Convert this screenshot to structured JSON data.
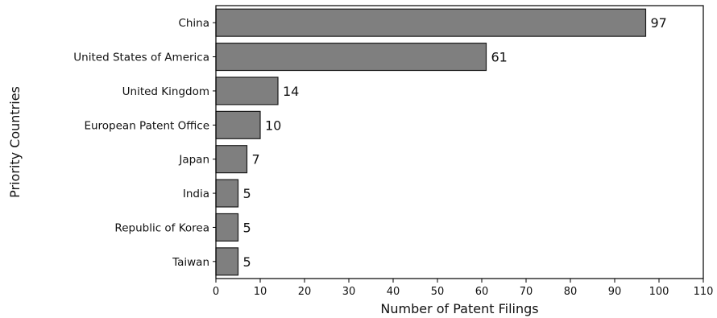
{
  "chart_data": {
    "type": "bar",
    "orientation": "horizontal",
    "categories": [
      "China",
      "United States of America",
      "United Kingdom",
      "European Patent Office",
      "Japan",
      "India",
      "Republic of Korea",
      "Taiwan"
    ],
    "values": [
      97,
      61,
      14,
      10,
      7,
      5,
      5,
      5
    ],
    "data_labels": [
      "97",
      "61",
      "14",
      "10",
      "7",
      "5",
      "5",
      "5"
    ],
    "xlabel": "Number of Patent Filings",
    "ylabel": "Priority Countries",
    "xlim": [
      0,
      110
    ],
    "xticks": [
      0,
      10,
      20,
      30,
      40,
      50,
      60,
      70,
      80,
      90,
      100,
      110
    ],
    "xtick_labels": [
      "0",
      "10",
      "20",
      "30",
      "40",
      "50",
      "60",
      "70",
      "80",
      "90",
      "100",
      "110"
    ],
    "grid": false,
    "bar_color": "#7f7f7f",
    "bar_edge_color": "#1a1a1a"
  }
}
